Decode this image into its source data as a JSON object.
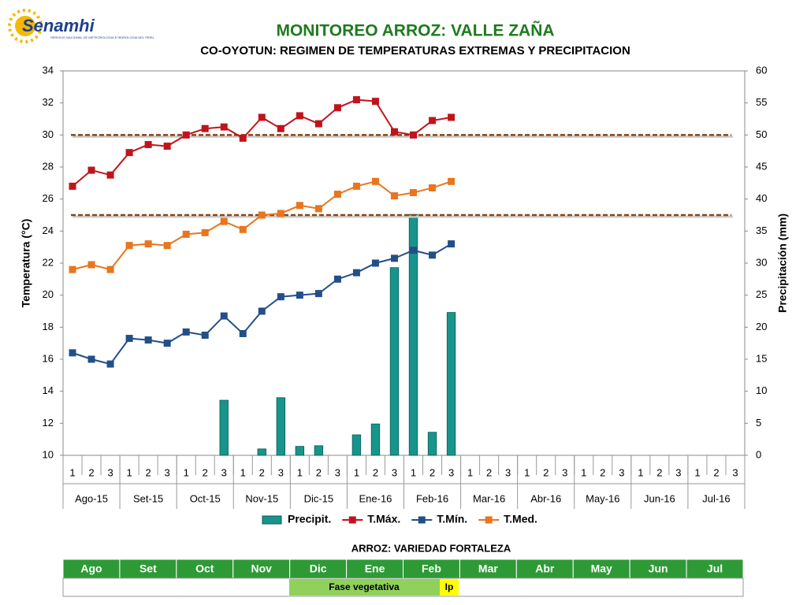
{
  "logo": {
    "name": "Senamhi",
    "subtitle": "SERVICIO NACIONAL DE METEOROLOGIA E HIDROLOGIA DEL PERU"
  },
  "chart_data": {
    "type": "combo",
    "title": "MONITOREO ARROZ: VALLE ZAÑA",
    "subtitle": "CO-OYOTUN: REGIMEN DE TEMPERATURAS EXTREMAS Y PRECIPITACION",
    "ylabel": "Temperatura (°C)",
    "y2label": "Precipitación (mm)",
    "categories": [
      "1",
      "2",
      "3",
      "1",
      "2",
      "3",
      "1",
      "2",
      "3",
      "1",
      "2",
      "3",
      "1",
      "2",
      "3",
      "1",
      "2",
      "3",
      "1",
      "2",
      "3",
      "1",
      "2",
      "3",
      "1",
      "2",
      "3",
      "1",
      "2",
      "3",
      "1",
      "2",
      "3",
      "1",
      "2",
      "3"
    ],
    "months": [
      "Ago-15",
      "Set-15",
      "Oct-15",
      "Nov-15",
      "Dic-15",
      "Ene-16",
      "Feb-16",
      "Mar-16",
      "Abr-16",
      "May-16",
      "Jun-16",
      "Jul-16"
    ],
    "ylim": [
      10,
      34
    ],
    "yticks": [
      10,
      12,
      14,
      16,
      18,
      20,
      22,
      24,
      26,
      28,
      30,
      32,
      34
    ],
    "y2lim": [
      0,
      60
    ],
    "y2ticks": [
      0,
      5,
      10,
      15,
      20,
      25,
      30,
      35,
      40,
      45,
      50,
      55,
      60
    ],
    "reference_lines": [
      30,
      25
    ],
    "reference_color": "#8b4513",
    "grid": false,
    "series": [
      {
        "name": "Precipit.",
        "type": "bar",
        "axis": "y2",
        "color": "#17958c",
        "values": [
          0,
          0,
          0,
          0,
          0,
          0,
          0,
          0,
          8.6,
          0,
          1.0,
          9.0,
          1.4,
          1.5,
          0,
          3.2,
          4.9,
          29.3,
          37.6,
          3.6,
          22.3,
          null,
          null,
          null,
          null,
          null,
          null,
          null,
          null,
          null,
          null,
          null,
          null,
          null,
          null,
          null
        ]
      },
      {
        "name": "T.Máx.",
        "type": "line",
        "color": "#c0141c",
        "values": [
          26.8,
          27.8,
          27.5,
          28.9,
          29.4,
          29.3,
          30.0,
          30.4,
          30.5,
          29.8,
          31.1,
          30.4,
          31.2,
          30.7,
          31.7,
          32.2,
          32.1,
          30.2,
          30.0,
          30.9,
          31.1,
          null,
          null,
          null,
          null,
          null,
          null,
          null,
          null,
          null,
          null,
          null,
          null,
          null,
          null,
          null
        ]
      },
      {
        "name": "T.Mín.",
        "type": "line",
        "color": "#234f88",
        "values": [
          16.4,
          16.0,
          15.7,
          17.3,
          17.2,
          17.0,
          17.7,
          17.5,
          18.7,
          17.6,
          19.0,
          19.9,
          20.0,
          20.1,
          21.0,
          21.4,
          22.0,
          22.3,
          22.8,
          22.5,
          23.2,
          null,
          null,
          null,
          null,
          null,
          null,
          null,
          null,
          null,
          null,
          null,
          null,
          null,
          null,
          null
        ]
      },
      {
        "name": "T.Med.",
        "type": "line",
        "color": "#e8761e",
        "values": [
          21.6,
          21.9,
          21.6,
          23.1,
          23.2,
          23.1,
          23.8,
          23.9,
          24.6,
          24.1,
          25.0,
          25.1,
          25.6,
          25.4,
          26.3,
          26.8,
          27.1,
          26.2,
          26.4,
          26.7,
          27.1,
          null,
          null,
          null,
          null,
          null,
          null,
          null,
          null,
          null,
          null,
          null,
          null,
          null,
          null,
          null
        ]
      }
    ]
  },
  "phase_table": {
    "title": "ARROZ: VARIEDAD FORTALEZA",
    "months": [
      "Ago",
      "Set",
      "Oct",
      "Nov",
      "Dic",
      "Ene",
      "Feb",
      "Mar",
      "Abr",
      "May",
      "Jun",
      "Jul"
    ],
    "phases": [
      {
        "label": "Fase vegetativa"
      },
      {
        "label": "Ip"
      }
    ]
  }
}
